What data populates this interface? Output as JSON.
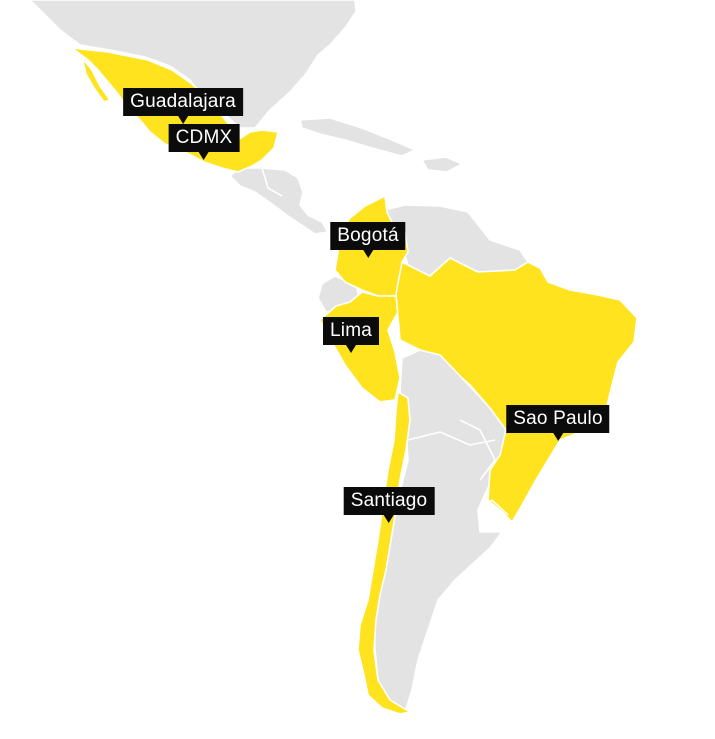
{
  "colors": {
    "highlight": "#ffe31e",
    "land": "#e3e3e3",
    "border": "#ffffff",
    "label_bg": "#0b0b0b",
    "label_text": "#ffffff"
  },
  "highlighted_countries": [
    "Mexico",
    "Colombia",
    "Peru",
    "Brazil",
    "Chile"
  ],
  "cities": [
    {
      "id": "guadalajara",
      "label": "Guadalajara"
    },
    {
      "id": "cdmx",
      "label": "CDMX"
    },
    {
      "id": "bogota",
      "label": "Bogotá"
    },
    {
      "id": "lima",
      "label": "Lima"
    },
    {
      "id": "sao-paulo",
      "label": "Sao Paulo"
    },
    {
      "id": "santiago",
      "label": "Santiago"
    }
  ]
}
